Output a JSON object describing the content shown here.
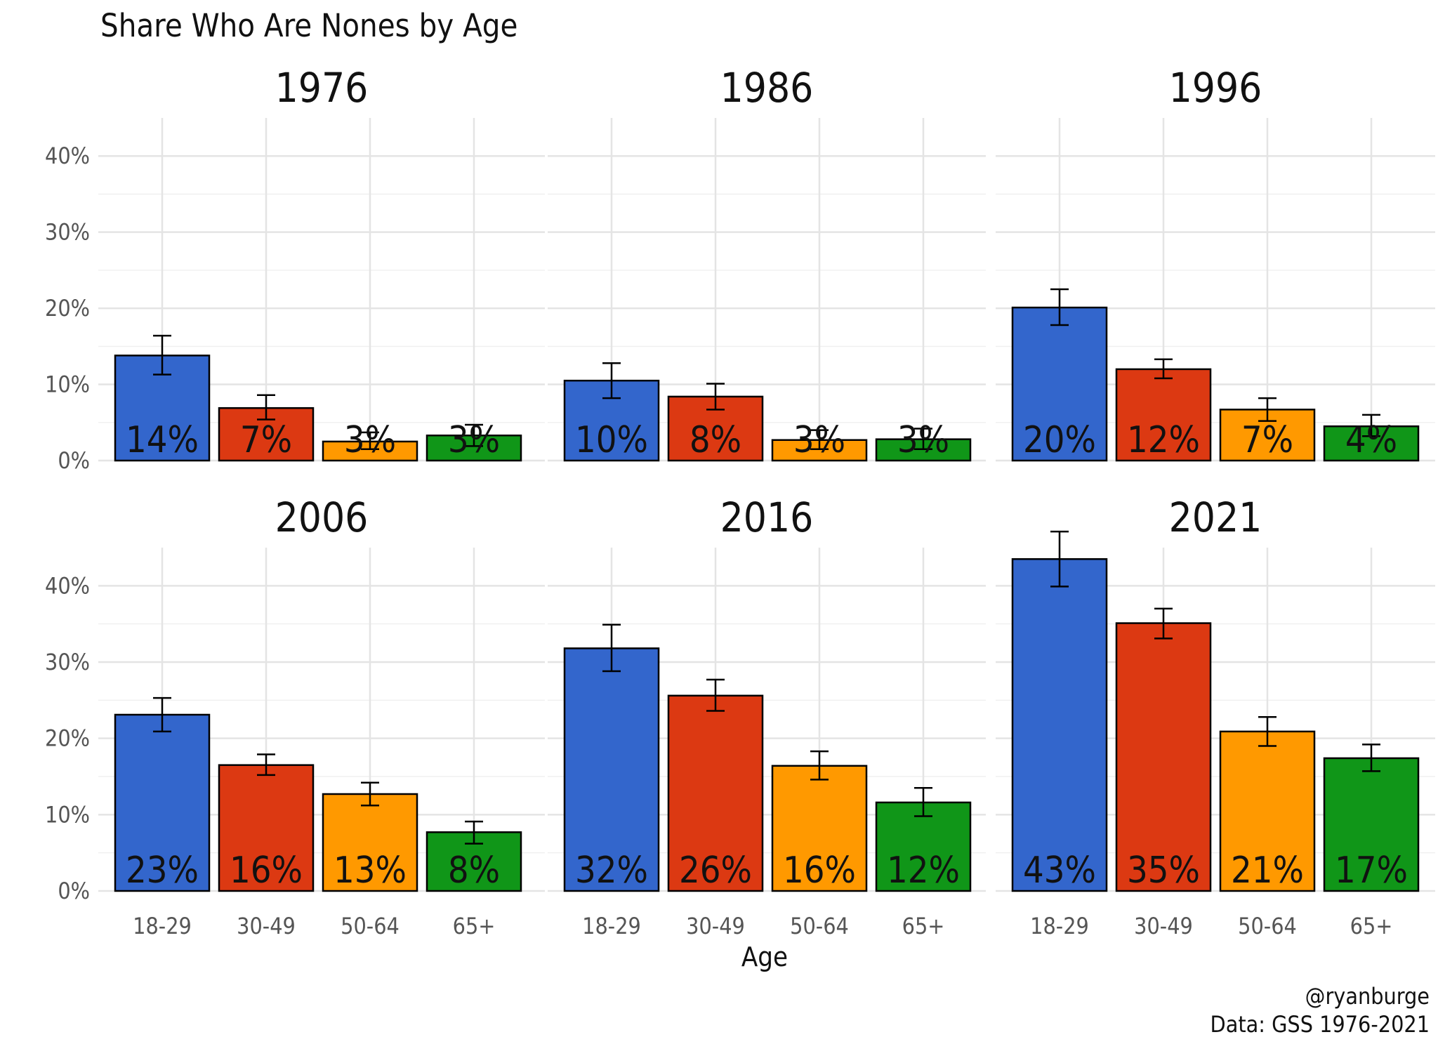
{
  "chart_data": {
    "type": "bar",
    "title": "Share Who Are Nones by Age",
    "xlabel": "Age",
    "ylabel": "",
    "categories": [
      "18-29",
      "30-49",
      "50-64",
      "65+"
    ],
    "ylim": [
      0,
      0.45
    ],
    "y_ticks": [
      0,
      0.1,
      0.2,
      0.3,
      0.4
    ],
    "y_tick_labels": [
      "0%",
      "10%",
      "20%",
      "30%",
      "40%"
    ],
    "colors": [
      "#3366CC",
      "#DC3912",
      "#FF9900",
      "#109618"
    ],
    "grid": true,
    "legend": "none",
    "panels": [
      {
        "title": "1976",
        "values": [
          0.138,
          0.069,
          0.025,
          0.033
        ],
        "error": [
          [
            0.113,
            0.164
          ],
          [
            0.054,
            0.086
          ],
          [
            0.015,
            0.037
          ],
          [
            0.019,
            0.047
          ]
        ],
        "labels": [
          "14%",
          "7%",
          "3%",
          "3%"
        ]
      },
      {
        "title": "1986",
        "values": [
          0.105,
          0.084,
          0.027,
          0.028
        ],
        "error": [
          [
            0.082,
            0.128
          ],
          [
            0.067,
            0.101
          ],
          [
            0.015,
            0.04
          ],
          [
            0.015,
            0.042
          ]
        ],
        "labels": [
          "10%",
          "8%",
          "3%",
          "3%"
        ]
      },
      {
        "title": "1996",
        "values": [
          0.201,
          0.12,
          0.067,
          0.045
        ],
        "error": [
          [
            0.178,
            0.225
          ],
          [
            0.108,
            0.133
          ],
          [
            0.052,
            0.082
          ],
          [
            0.032,
            0.06
          ]
        ],
        "labels": [
          "20%",
          "12%",
          "7%",
          "4%"
        ]
      },
      {
        "title": "2006",
        "values": [
          0.231,
          0.165,
          0.127,
          0.077
        ],
        "error": [
          [
            0.209,
            0.253
          ],
          [
            0.152,
            0.179
          ],
          [
            0.112,
            0.142
          ],
          [
            0.062,
            0.091
          ]
        ],
        "labels": [
          "23%",
          "16%",
          "13%",
          "8%"
        ]
      },
      {
        "title": "2016",
        "values": [
          0.318,
          0.256,
          0.164,
          0.116
        ],
        "error": [
          [
            0.288,
            0.349
          ],
          [
            0.236,
            0.277
          ],
          [
            0.146,
            0.183
          ],
          [
            0.098,
            0.135
          ]
        ],
        "labels": [
          "32%",
          "26%",
          "16%",
          "12%"
        ]
      },
      {
        "title": "2021",
        "values": [
          0.435,
          0.351,
          0.209,
          0.174
        ],
        "error": [
          [
            0.399,
            0.471
          ],
          [
            0.331,
            0.37
          ],
          [
            0.19,
            0.228
          ],
          [
            0.157,
            0.192
          ]
        ],
        "labels": [
          "43%",
          "35%",
          "21%",
          "17%"
        ]
      }
    ]
  },
  "caption": {
    "line1": "@ryanburge",
    "line2": "Data: GSS 1976-2021"
  }
}
